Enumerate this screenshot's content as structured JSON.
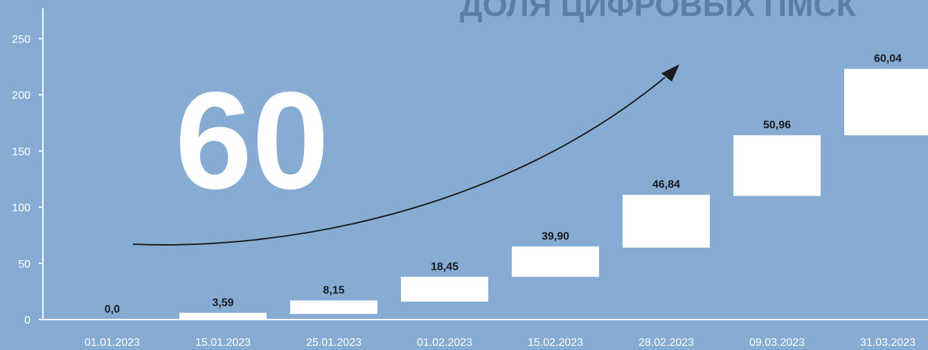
{
  "colors": {
    "background": "#86acd3",
    "plot_area": "#86acd3",
    "bar": "#ffffff",
    "axis": "#ffffff",
    "label": "#1a1a1a",
    "title": "#5d7ea3",
    "arrow": "#1a1a1a"
  },
  "title": "ДОЛЯ ЦИФРОВЫХ ПМСК",
  "highlight": "60",
  "chart_data": {
    "type": "bar",
    "variant": "waterfall",
    "title": "ДОЛЯ ЦИФРОВЫХ ПМСК",
    "xlabel": "",
    "ylabel": "",
    "ylim": [
      0,
      260
    ],
    "yticks": [
      0,
      50,
      100,
      150,
      200,
      250
    ],
    "grid": false,
    "legend": "none",
    "categories": [
      "01.01.2023",
      "15.01.2023",
      "25.01.2023",
      "01.02.2023",
      "15.02.2023",
      "28.02.2023",
      "09.03.2023",
      "31.03.2023"
    ],
    "series": [
      {
        "values": [
          0,
          3.59,
          8.15,
          18.45,
          39.9,
          46.84,
          50.96,
          60.04
        ],
        "bar_bottom": [
          0,
          0,
          5,
          16,
          38,
          64,
          110,
          164
        ],
        "bar_top": [
          0,
          6,
          17,
          38,
          65,
          111,
          164,
          223
        ],
        "labels": [
          "0,0",
          "3,59",
          "8,15",
          "18,45",
          "39,90",
          "46,84",
          "50,96",
          "60,04"
        ]
      }
    ]
  }
}
